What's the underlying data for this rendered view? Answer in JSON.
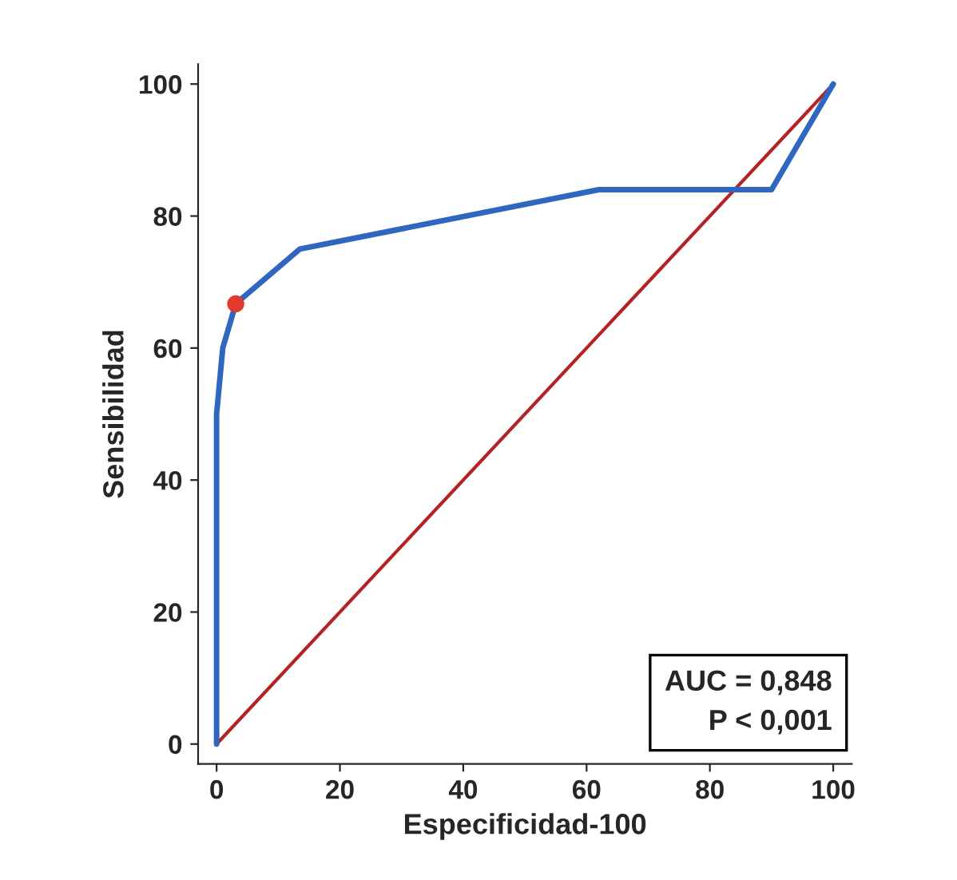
{
  "chart_data": {
    "type": "line",
    "xlabel": "Especificidad-100",
    "ylabel": "Sensibilidad",
    "series": [
      {
        "color": "#b52222",
        "x": [
          0,
          100
        ],
        "values": [
          0,
          100
        ]
      },
      {
        "color": "#2e66c0",
        "x": [
          0,
          0,
          1,
          3.1,
          13.5,
          62,
          90,
          100
        ],
        "values": [
          0,
          50,
          60,
          66.7,
          75,
          84,
          84,
          100
        ]
      },
      {
        "type": "scatter",
        "color": "#e03a2e",
        "x": [
          3.1
        ],
        "values": [
          66.7
        ]
      }
    ],
    "xlim": [
      -3,
      103
    ],
    "ylim": [
      -3,
      103
    ],
    "xticks": [
      0,
      20,
      40,
      60,
      80,
      100
    ],
    "yticks": [
      0,
      20,
      40,
      60,
      80,
      100
    ],
    "grid": false,
    "annotations": [
      "AUC = 0,848\nP < 0,001"
    ]
  }
}
